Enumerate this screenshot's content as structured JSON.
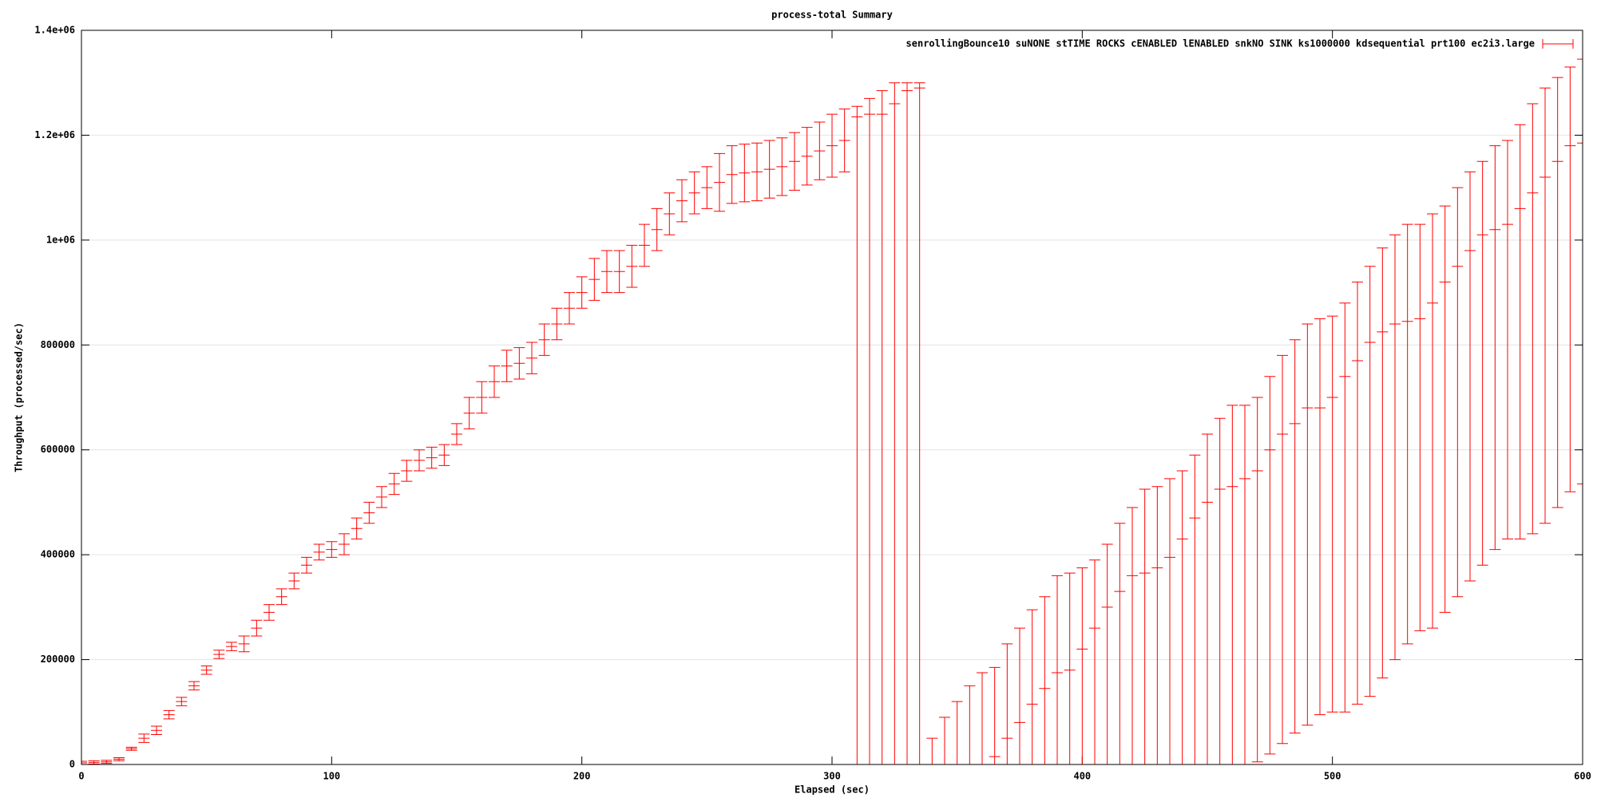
{
  "chart_data": {
    "type": "errorbar",
    "title": "process-total Summary",
    "xlabel": "Elapsed (sec)",
    "ylabel": "Throughput (processed/sec)",
    "xlim": [
      0,
      600
    ],
    "ylim": [
      0,
      1400000
    ],
    "xticks": [
      0,
      100,
      200,
      300,
      400,
      500,
      600
    ],
    "yticks": [
      0,
      200000,
      400000,
      600000,
      800000,
      {
        "value": 1000000,
        "label": "1e+06"
      },
      {
        "value": 1200000,
        "label": "1.2e+06"
      },
      {
        "value": 1400000,
        "label": "1.4e+06"
      }
    ],
    "grid": true,
    "legend": "top-right",
    "x": [
      0,
      5,
      10,
      15,
      20,
      25,
      30,
      35,
      40,
      45,
      50,
      55,
      60,
      65,
      70,
      75,
      80,
      85,
      90,
      95,
      100,
      105,
      110,
      115,
      120,
      125,
      130,
      135,
      140,
      145,
      150,
      155,
      160,
      165,
      170,
      175,
      180,
      185,
      190,
      195,
      200,
      205,
      210,
      215,
      220,
      225,
      230,
      235,
      240,
      245,
      250,
      255,
      260,
      265,
      270,
      275,
      280,
      285,
      290,
      295,
      300,
      305,
      310,
      315,
      320,
      325,
      330,
      335,
      340,
      345,
      350,
      355,
      360,
      365,
      370,
      375,
      380,
      385,
      390,
      395,
      400,
      405,
      410,
      415,
      420,
      425,
      430,
      435,
      440,
      445,
      450,
      455,
      460,
      465,
      470,
      475,
      480,
      485,
      490,
      495,
      500,
      505,
      510,
      515,
      520,
      525,
      530,
      535,
      540,
      545,
      550,
      555,
      560,
      565,
      570,
      575,
      580,
      585,
      590,
      595,
      600
    ],
    "series": [
      {
        "name": "senrollingBounce10 suNONE stTIME ROCKS cENABLED lENABLED snkNO SINK ks1000000 kdsequential prt100 ec2i3.large",
        "color": "#ff0000",
        "values": [
          3000,
          4000,
          5000,
          10000,
          30000,
          50000,
          65000,
          95000,
          120000,
          150000,
          180000,
          210000,
          225000,
          230000,
          260000,
          290000,
          320000,
          350000,
          380000,
          405000,
          410000,
          420000,
          450000,
          480000,
          510000,
          535000,
          560000,
          580000,
          585000,
          590000,
          630000,
          670000,
          700000,
          730000,
          760000,
          765000,
          775000,
          810000,
          840000,
          870000,
          900000,
          925000,
          940000,
          940000,
          950000,
          990000,
          1020000,
          1050000,
          1075000,
          1090000,
          1100000,
          1110000,
          1125000,
          1128000,
          1130000,
          1135000,
          1140000,
          1150000,
          1160000,
          1170000,
          1180000,
          1190000,
          1235000,
          1240000,
          1240000,
          1260000,
          1285000,
          1290000,
          0,
          0,
          0,
          0,
          0,
          15000,
          50000,
          80000,
          115000,
          145000,
          175000,
          180000,
          220000,
          260000,
          300000,
          330000,
          360000,
          365000,
          375000,
          395000,
          430000,
          470000,
          500000,
          525000,
          530000,
          545000,
          560000,
          600000,
          630000,
          650000,
          680000,
          680000,
          700000,
          740000,
          770000,
          805000,
          825000,
          840000,
          845000,
          850000,
          880000,
          920000,
          950000,
          980000,
          1010000,
          1020000,
          1030000,
          1060000,
          1090000,
          1120000,
          1150000,
          1180000,
          1185000
        ],
        "ylow": [
          0,
          1000,
          2000,
          7000,
          27000,
          42000,
          57000,
          87000,
          112000,
          142000,
          172000,
          202000,
          217000,
          215000,
          245000,
          275000,
          305000,
          335000,
          365000,
          390000,
          395000,
          400000,
          430000,
          460000,
          490000,
          515000,
          540000,
          560000,
          565000,
          570000,
          610000,
          640000,
          670000,
          700000,
          730000,
          735000,
          745000,
          780000,
          810000,
          840000,
          870000,
          885000,
          900000,
          900000,
          910000,
          950000,
          980000,
          1010000,
          1035000,
          1050000,
          1060000,
          1055000,
          1070000,
          1073000,
          1075000,
          1080000,
          1085000,
          1095000,
          1105000,
          1115000,
          1120000,
          1130000,
          0,
          0,
          0,
          0,
          0,
          0,
          0,
          0,
          0,
          0,
          0,
          0,
          0,
          0,
          0,
          0,
          0,
          0,
          0,
          0,
          0,
          0,
          0,
          0,
          0,
          0,
          0,
          0,
          0,
          0,
          0,
          0,
          5000,
          20000,
          40000,
          60000,
          75000,
          95000,
          100000,
          100000,
          115000,
          130000,
          165000,
          200000,
          230000,
          255000,
          260000,
          290000,
          320000,
          350000,
          380000,
          410000,
          430000,
          430000,
          440000,
          460000,
          490000,
          520000,
          535000
        ],
        "yhigh": [
          6000,
          7000,
          8000,
          13000,
          33000,
          58000,
          73000,
          103000,
          128000,
          158000,
          188000,
          218000,
          233000,
          245000,
          275000,
          305000,
          335000,
          365000,
          395000,
          420000,
          425000,
          440000,
          470000,
          500000,
          530000,
          555000,
          580000,
          600000,
          605000,
          610000,
          650000,
          700000,
          730000,
          760000,
          790000,
          795000,
          805000,
          840000,
          870000,
          900000,
          930000,
          965000,
          980000,
          980000,
          990000,
          1030000,
          1060000,
          1090000,
          1115000,
          1130000,
          1140000,
          1165000,
          1180000,
          1183000,
          1185000,
          1190000,
          1195000,
          1205000,
          1215000,
          1225000,
          1240000,
          1250000,
          1255000,
          1270000,
          1285000,
          1300000,
          1300000,
          1300000,
          50000,
          90000,
          120000,
          150000,
          175000,
          185000,
          230000,
          260000,
          295000,
          320000,
          360000,
          365000,
          375000,
          390000,
          420000,
          460000,
          490000,
          525000,
          530000,
          545000,
          560000,
          590000,
          630000,
          660000,
          685000,
          685000,
          700000,
          740000,
          780000,
          810000,
          840000,
          850000,
          855000,
          880000,
          920000,
          950000,
          985000,
          1010000,
          1030000,
          1030000,
          1050000,
          1065000,
          1100000,
          1130000,
          1150000,
          1180000,
          1190000,
          1220000,
          1260000,
          1290000,
          1310000,
          1330000,
          1345000
        ]
      }
    ]
  }
}
